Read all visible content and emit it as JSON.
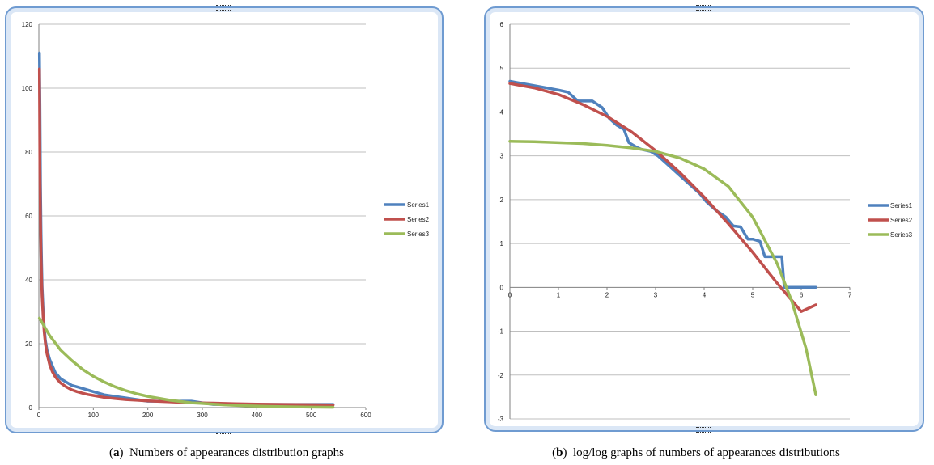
{
  "colors": {
    "series1": "#4f81bd",
    "series2": "#c0504d",
    "series3": "#9bbb59",
    "grid": "#bfbfbf",
    "frame": "#6f9bd1"
  },
  "captions": [
    {
      "label": "a",
      "text": "Numbers of appearances distribution graphs"
    },
    {
      "label": "b",
      "text": "log/log graphs of numbers of appearances distributions"
    }
  ],
  "chart_data": [
    {
      "type": "line",
      "title": "",
      "xlabel": "",
      "ylabel": "",
      "xlim": [
        0,
        600
      ],
      "ylim": [
        0,
        120
      ],
      "xticks": [
        0,
        100,
        200,
        300,
        400,
        500,
        600
      ],
      "yticks": [
        0,
        20,
        40,
        60,
        80,
        100,
        120
      ],
      "grid": "horizontal",
      "legend": "right",
      "series": [
        {
          "name": "Series1",
          "color": "#4f81bd",
          "x": [
            1,
            2,
            3,
            4,
            5,
            6,
            8,
            10,
            12,
            15,
            20,
            25,
            30,
            35,
            40,
            50,
            60,
            70,
            80,
            90,
            100,
            120,
            140,
            160,
            180,
            200,
            240,
            280,
            320,
            360,
            400,
            450,
            500,
            540
          ],
          "y": [
            111,
            95,
            70,
            55,
            45,
            38,
            30,
            25,
            21,
            18,
            15,
            13,
            11,
            10,
            9,
            8,
            7,
            6.5,
            6,
            5.5,
            5,
            4,
            3.5,
            3,
            2.5,
            2,
            2,
            2,
            1,
            1,
            1,
            1,
            1,
            1
          ]
        },
        {
          "name": "Series2",
          "color": "#c0504d",
          "x": [
            1,
            2,
            3,
            4,
            5,
            6,
            8,
            10,
            12,
            15,
            20,
            25,
            30,
            35,
            40,
            50,
            60,
            70,
            80,
            90,
            100,
            120,
            140,
            160,
            180,
            200,
            240,
            280,
            320,
            360,
            400,
            450,
            500,
            540
          ],
          "y": [
            106,
            75,
            58,
            47,
            40,
            35,
            28,
            23.5,
            20,
            16.8,
            13.3,
            11.2,
            9.7,
            8.6,
            7.7,
            6.5,
            5.6,
            5,
            4.5,
            4.1,
            3.8,
            3.2,
            2.8,
            2.5,
            2.3,
            2.1,
            1.8,
            1.5,
            1.4,
            1.2,
            1.1,
            1,
            0.9,
            0.8
          ]
        },
        {
          "name": "Series3",
          "color": "#9bbb59",
          "x": [
            1,
            20,
            40,
            60,
            80,
            100,
            120,
            140,
            160,
            180,
            200,
            220,
            240,
            260,
            280,
            300,
            340,
            380,
            420,
            460,
            500,
            540
          ],
          "y": [
            28,
            22.5,
            18,
            14.8,
            12,
            9.8,
            8,
            6.5,
            5.3,
            4.3,
            3.5,
            2.9,
            2.3,
            1.9,
            1.5,
            1.3,
            0.85,
            0.56,
            0.37,
            0.25,
            0.16,
            0.1
          ]
        }
      ]
    },
    {
      "type": "line",
      "title": "",
      "xlabel": "",
      "ylabel": "",
      "xlim": [
        0,
        7
      ],
      "ylim": [
        -3,
        6
      ],
      "xticks": [
        0,
        1,
        2,
        3,
        4,
        5,
        6,
        7
      ],
      "yticks": [
        -3,
        -2,
        -1,
        0,
        1,
        2,
        3,
        4,
        5,
        6
      ],
      "grid": "horizontal",
      "legend": "right",
      "series": [
        {
          "name": "Series1",
          "color": "#4f81bd",
          "x": [
            0,
            0.5,
            1,
            1.2,
            1.4,
            1.7,
            1.9,
            2.05,
            2.2,
            2.35,
            2.45,
            2.6,
            2.7,
            2.9,
            3.05,
            3.3,
            3.5,
            3.7,
            3.9,
            4.05,
            4.25,
            4.45,
            4.6,
            4.75,
            4.9,
            5.0,
            5.15,
            5.25,
            5.35,
            5.45,
            5.6,
            5.65,
            6.0,
            6.3
          ],
          "y": [
            4.7,
            4.6,
            4.5,
            4.45,
            4.25,
            4.25,
            4.1,
            3.85,
            3.7,
            3.6,
            3.3,
            3.2,
            3.15,
            3.1,
            3.0,
            2.75,
            2.55,
            2.35,
            2.15,
            1.95,
            1.75,
            1.6,
            1.4,
            1.38,
            1.1,
            1.1,
            1.05,
            0.7,
            0.7,
            0.7,
            0.7,
            0,
            0,
            0
          ]
        },
        {
          "name": "Series2",
          "color": "#c0504d",
          "x": [
            0,
            0.5,
            1,
            1.5,
            2,
            2.5,
            3,
            3.5,
            4,
            4.5,
            5,
            5.5,
            6,
            6.3
          ],
          "y": [
            4.65,
            4.55,
            4.4,
            4.17,
            3.9,
            3.55,
            3.12,
            2.62,
            2.06,
            1.45,
            0.8,
            0.1,
            -0.55,
            -0.4
          ]
        },
        {
          "name": "Series3",
          "color": "#9bbb59",
          "x": [
            0,
            0.5,
            1,
            1.5,
            2,
            2.5,
            3,
            3.5,
            4,
            4.5,
            5,
            5.5,
            5.8,
            6.1,
            6.3
          ],
          "y": [
            3.33,
            3.32,
            3.3,
            3.28,
            3.24,
            3.18,
            3.1,
            2.95,
            2.7,
            2.3,
            1.6,
            0.55,
            -0.3,
            -1.4,
            -2.45
          ]
        }
      ]
    }
  ]
}
